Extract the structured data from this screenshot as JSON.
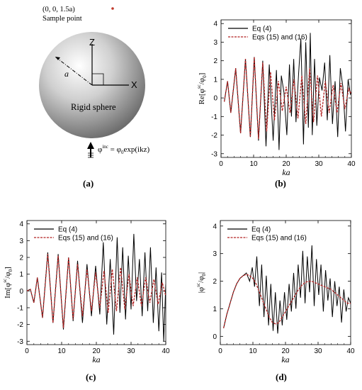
{
  "panel_a": {
    "point_label": "(0, 0, 1.5a)",
    "sample_label": "Sample point",
    "z_label": "Z",
    "x_label": "X",
    "radius_label": "a",
    "sphere_label": "Rigid sphere",
    "incident_wave": "φ^inc = φ0 exp(ikz)",
    "incident_lhs": "φ",
    "incident_sup": "inc",
    "incident_rhs": " = φ",
    "incident_sub": "0",
    "incident_tail": "exp(ikz)",
    "caption": "(a)",
    "colors": {
      "sphere_light": "#ffffff",
      "sphere_dark": "#7a7a7a",
      "point": "#c0392b"
    }
  },
  "legend": {
    "eq4": "Eq (4)",
    "eq15": "Eqs (15) and (16)"
  },
  "colors": {
    "eq4": "#000000",
    "eq15": "#b22222"
  },
  "chart_data": [
    {
      "type": "line",
      "panel": "b",
      "caption": "(b)",
      "title": "",
      "xlabel": "ka",
      "ylabel": "Re[φsc/φ0]",
      "ylabel_main": "Re[φ",
      "ylabel_sup": "sc",
      "ylabel_mid": "/φ",
      "ylabel_sub": "0",
      "ylabel_end": "]",
      "xlim": [
        0,
        40
      ],
      "ylim": [
        -3.2,
        4.2
      ],
      "xticks": [
        0,
        10,
        20,
        30,
        40
      ],
      "yticks": [
        -3,
        -2,
        -1,
        0,
        1,
        2,
        3,
        4
      ],
      "legend_placement": "top-right",
      "series": [
        {
          "name": "Eq (4)",
          "style": "solid",
          "x": [
            1,
            2,
            3,
            4.5,
            6,
            7.5,
            9,
            10.2,
            11.5,
            12.8,
            13.8,
            14.8,
            16,
            17,
            17.8,
            18.5,
            19.3,
            20.2,
            21,
            21.6,
            22.3,
            23,
            23.8,
            24.5,
            25.3,
            26,
            26.8,
            27.4,
            28,
            28.7,
            29.4,
            30.2,
            31,
            31.8,
            32.6,
            33.4,
            34.2,
            35,
            35.8,
            36.6,
            37.4,
            38.2,
            39,
            39.7,
            40
          ],
          "values": [
            -0.2,
            0.9,
            -0.8,
            1.6,
            -1.9,
            2.1,
            -2.1,
            2.2,
            -2.3,
            2.0,
            -2.6,
            1.8,
            -2.3,
            1.5,
            -2.8,
            1.2,
            0.3,
            -2.0,
            1.8,
            -1.0,
            2.1,
            -1.3,
            1.3,
            3.2,
            -2.5,
            3.0,
            -1.6,
            3.5,
            -2.0,
            2.1,
            -1.5,
            1.1,
            0.4,
            1.9,
            -1.2,
            2.3,
            -1.4,
            0.9,
            -2.1,
            1.6,
            0.6,
            -1.8,
            1.0,
            0.2,
            0.3
          ]
        },
        {
          "name": "Eqs (15) and (16)",
          "style": "dashed",
          "x": [
            1,
            2,
            3,
            4.5,
            6,
            7.5,
            9,
            10.2,
            11.5,
            12.8,
            14,
            15.2,
            16.4,
            17.6,
            18.8,
            20,
            21.2,
            22.4,
            23.6,
            24.8,
            26,
            27.2,
            28.4,
            29.6,
            30.8,
            32,
            33.2,
            34.4,
            35.6,
            36.8,
            38,
            39.2,
            40
          ],
          "values": [
            -0.2,
            0.9,
            -0.8,
            1.6,
            -1.9,
            2.1,
            -2.1,
            2.2,
            -2.2,
            1.9,
            -1.8,
            1.4,
            -1.2,
            0.9,
            -0.7,
            0.6,
            -0.8,
            1.0,
            -1.1,
            1.2,
            -1.4,
            1.6,
            -1.3,
            1.2,
            -1.0,
            0.9,
            -0.8,
            0.7,
            -0.8,
            0.8,
            -0.6,
            0.5,
            0.2
          ]
        }
      ]
    },
    {
      "type": "line",
      "panel": "c",
      "caption": "(c)",
      "title": "",
      "xlabel": "ka",
      "ylabel": "Im[φsc/φ0]",
      "ylabel_main": "Im[φ",
      "ylabel_sup": "sc",
      "ylabel_mid": "/φ",
      "ylabel_sub": "0",
      "ylabel_end": "]",
      "xlim": [
        0,
        40
      ],
      "ylim": [
        -3.2,
        4.2
      ],
      "xticks": [
        0,
        10,
        20,
        30,
        40
      ],
      "yticks": [
        -3,
        -2,
        -1,
        0,
        1,
        2,
        3,
        4
      ],
      "legend_placement": "top-right",
      "series": [
        {
          "name": "Eq (4)",
          "style": "solid",
          "x": [
            0,
            1,
            2,
            3,
            4.5,
            6,
            7.5,
            9,
            10.5,
            12,
            13.3,
            14.6,
            16,
            17.3,
            18.6,
            19.8,
            21,
            22,
            23,
            24,
            25,
            26,
            26.8,
            27.6,
            28.4,
            29.2,
            30,
            30.8,
            31.6,
            32.4,
            33.2,
            34,
            34.8,
            35.6,
            36.4,
            37.2,
            38,
            38.8,
            39.4,
            40
          ],
          "values": [
            0,
            0.1,
            -0.7,
            0.8,
            -1.6,
            2.3,
            -1.9,
            2.2,
            -2.3,
            2.0,
            -1.8,
            1.8,
            -1.9,
            1.6,
            -1.5,
            1.5,
            -1.4,
            2.9,
            -2.0,
            1.9,
            -2.6,
            3.2,
            -1.3,
            2.6,
            -1.7,
            2.1,
            -1.1,
            3.4,
            -0.6,
            1.9,
            -1.5,
            2.3,
            -1.2,
            2.6,
            -1.9,
            1.4,
            -2.4,
            1.1,
            -3.0,
            0.4
          ]
        },
        {
          "name": "Eqs (15) and (16)",
          "style": "dashed",
          "x": [
            0,
            1,
            2,
            3,
            4.5,
            6,
            7.5,
            9,
            10.5,
            12,
            13.3,
            14.6,
            16,
            17.3,
            18.6,
            19.8,
            21,
            22.2,
            23.4,
            24.6,
            25.8,
            27,
            28.2,
            29.4,
            30.6,
            31.8,
            33,
            34.2,
            35.4,
            36.6,
            37.8,
            39,
            40
          ],
          "values": [
            0,
            0.1,
            -0.7,
            0.8,
            -1.6,
            2.2,
            -1.9,
            2.1,
            -2.2,
            2.0,
            -1.7,
            1.6,
            -1.5,
            1.3,
            -1.2,
            1.1,
            -1.0,
            1.2,
            -1.3,
            1.3,
            -1.2,
            1.4,
            -1.1,
            1.0,
            -0.9,
            0.8,
            -0.9,
            0.8,
            -0.7,
            0.7,
            -0.8,
            0.5,
            -0.3
          ]
        }
      ]
    },
    {
      "type": "line",
      "panel": "d",
      "caption": "(d)",
      "title": "",
      "xlabel": "ka",
      "ylabel": "|φsc/φ0|",
      "ylabel_main": "|φ",
      "ylabel_sup": "sc",
      "ylabel_mid": "/φ",
      "ylabel_sub": "0",
      "ylabel_end": "|",
      "xlim": [
        0,
        40
      ],
      "ylim": [
        -0.3,
        4.2
      ],
      "xticks": [
        0,
        10,
        20,
        30,
        40
      ],
      "yticks": [
        0,
        1,
        2,
        3,
        4
      ],
      "legend_placement": "top-right",
      "series": [
        {
          "name": "Eq (4)",
          "style": "solid",
          "x": [
            1,
            2,
            3,
            4,
            5,
            6,
            7,
            8,
            9,
            9.8,
            10.5,
            11.2,
            12,
            12.7,
            13.4,
            14.1,
            14.8,
            15.5,
            16.2,
            16.9,
            17.6,
            18.3,
            19,
            19.7,
            20.4,
            21.1,
            21.8,
            22.5,
            23.2,
            23.9,
            24.6,
            25.3,
            26,
            26.7,
            27.4,
            28.1,
            28.8,
            29.5,
            30.2,
            30.9,
            31.6,
            32.3,
            33,
            33.7,
            34.4,
            35.1,
            35.8,
            36.5,
            37.2,
            37.9,
            38.6,
            39.3,
            40
          ],
          "values": [
            0.3,
            0.8,
            1.2,
            1.6,
            1.9,
            2.1,
            2.2,
            2.3,
            2.0,
            2.5,
            1.8,
            2.9,
            1.1,
            2.6,
            0.7,
            2.2,
            0.4,
            1.9,
            0.2,
            1.6,
            0.1,
            1.3,
            0.4,
            1.6,
            0.6,
            1.9,
            0.9,
            2.3,
            1.0,
            2.6,
            1.4,
            3.1,
            1.2,
            2.9,
            1.6,
            3.3,
            1.1,
            2.8,
            1.5,
            2.6,
            0.9,
            2.4,
            1.3,
            2.1,
            0.7,
            2.0,
            1.1,
            1.8,
            0.5,
            1.7,
            0.9,
            1.4,
            1.2
          ]
        },
        {
          "name": "Eqs (15) and (16)",
          "style": "dashed",
          "x": [
            1,
            2,
            3,
            4,
            5,
            6,
            7,
            8,
            9,
            10,
            11,
            12,
            13,
            14,
            15,
            16,
            17,
            18,
            19,
            20,
            21,
            22,
            23,
            24,
            25,
            26,
            27,
            28,
            29,
            30,
            31,
            32,
            33,
            34,
            35,
            36,
            37,
            38,
            39,
            40
          ],
          "values": [
            0.3,
            0.8,
            1.2,
            1.6,
            1.9,
            2.1,
            2.2,
            2.25,
            2.2,
            2.1,
            1.9,
            1.6,
            1.3,
            1.0,
            0.7,
            0.5,
            0.45,
            0.5,
            0.7,
            0.9,
            1.1,
            1.3,
            1.5,
            1.7,
            1.85,
            1.95,
            2.0,
            2.0,
            1.95,
            1.9,
            1.85,
            1.8,
            1.75,
            1.7,
            1.6,
            1.5,
            1.4,
            1.3,
            1.2,
            1.2
          ]
        }
      ]
    }
  ]
}
